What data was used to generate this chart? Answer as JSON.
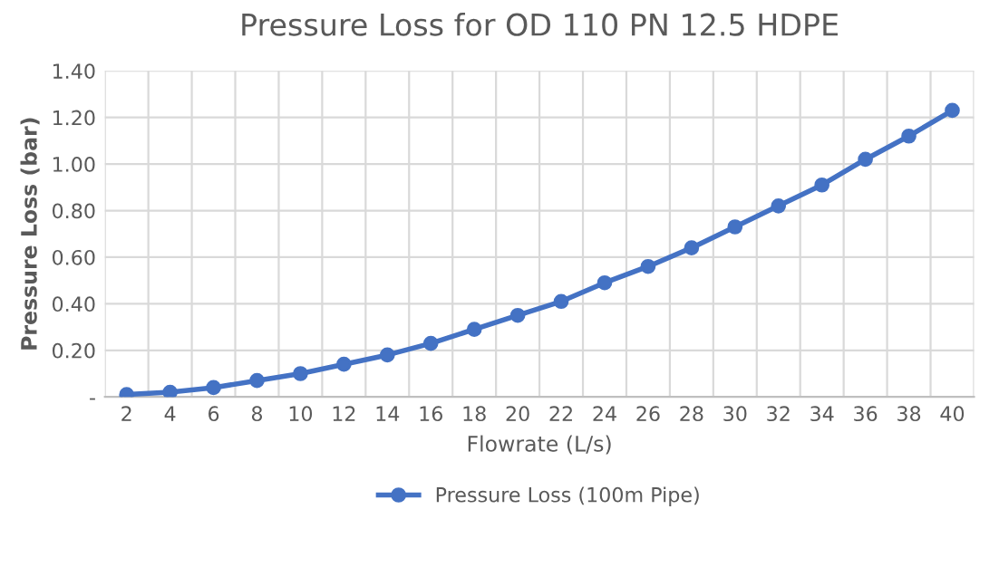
{
  "chart_data": {
    "type": "line",
    "title": "Pressure Loss for OD 110 PN 12.5 HDPE",
    "xlabel": "Flowrate (L/s)",
    "ylabel": "Pressure Loss (bar)",
    "categories": [
      "2",
      "4",
      "6",
      "8",
      "10",
      "12",
      "14",
      "16",
      "18",
      "20",
      "22",
      "24",
      "26",
      "28",
      "30",
      "32",
      "34",
      "36",
      "38",
      "40"
    ],
    "series": [
      {
        "name": "Pressure Loss (100m Pipe)",
        "color": "#4472c4",
        "values": [
          0.01,
          0.02,
          0.04,
          0.07,
          0.1,
          0.14,
          0.18,
          0.23,
          0.29,
          0.35,
          0.41,
          0.49,
          0.56,
          0.64,
          0.73,
          0.82,
          0.91,
          1.02,
          1.12,
          1.23
        ]
      }
    ],
    "ylim": [
      0,
      1.4
    ],
    "yticks": [
      {
        "value": 0,
        "label": "-"
      },
      {
        "value": 0.2,
        "label": "0.20"
      },
      {
        "value": 0.4,
        "label": "0.40"
      },
      {
        "value": 0.6,
        "label": "0.60"
      },
      {
        "value": 0.8,
        "label": "0.80"
      },
      {
        "value": 1.0,
        "label": "1.00"
      },
      {
        "value": 1.2,
        "label": "1.20"
      },
      {
        "value": 1.4,
        "label": "1.40"
      }
    ],
    "grid": true,
    "legend": "bottom",
    "marker": "circle",
    "line_style": "solid"
  }
}
